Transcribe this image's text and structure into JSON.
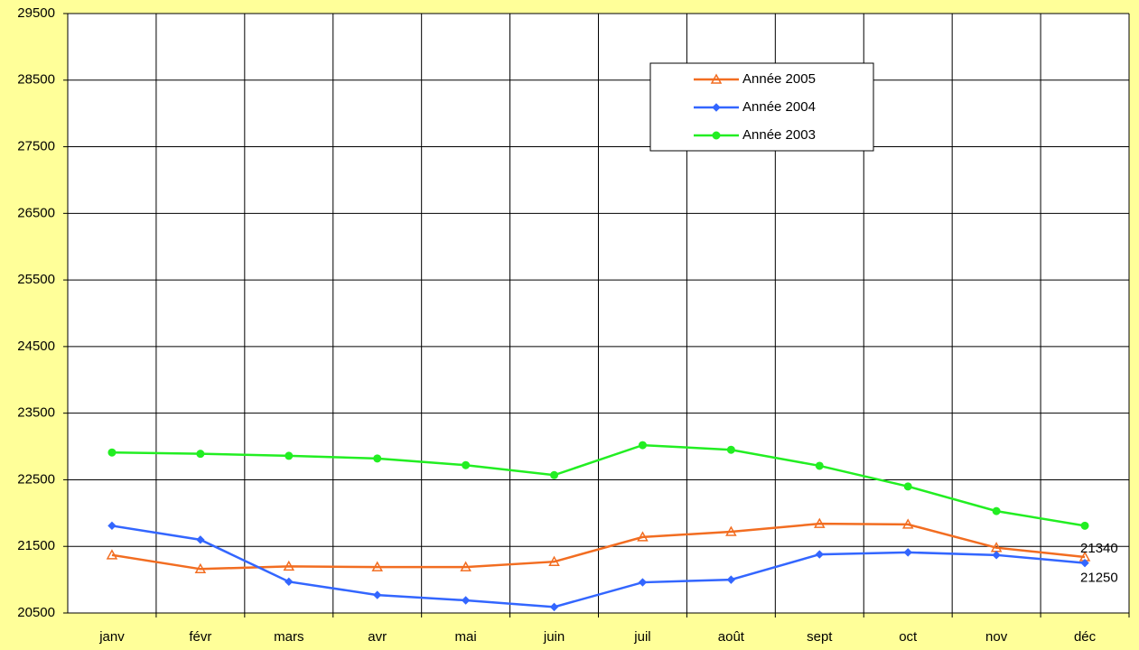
{
  "chart_data": {
    "type": "line",
    "categories": [
      "janv",
      "févr",
      "mars",
      "avr",
      "mai",
      "juin",
      "juil",
      "août",
      "sept",
      "oct",
      "nov",
      "déc"
    ],
    "series": [
      {
        "name": "Année 2005",
        "color": "#f26d21",
        "marker": "triangle",
        "values": [
          21370,
          21160,
          21200,
          21190,
          21190,
          21270,
          21640,
          21720,
          21840,
          21830,
          21480,
          21340
        ]
      },
      {
        "name": "Année 2004",
        "color": "#3366ff",
        "marker": "diamond",
        "values": [
          21810,
          21600,
          20970,
          20770,
          20690,
          20590,
          20960,
          21000,
          21380,
          21410,
          21370,
          21250
        ]
      },
      {
        "name": "Année 2003",
        "color": "#22ee22",
        "marker": "circle",
        "values": [
          22910,
          22890,
          22860,
          22820,
          22720,
          22570,
          23020,
          22950,
          22710,
          22400,
          22030,
          21810
        ]
      }
    ],
    "ylim": [
      20500,
      29500
    ],
    "yticks": [
      20500,
      21500,
      22500,
      23500,
      24500,
      25500,
      26500,
      27500,
      28500,
      29500
    ],
    "grid": true
  }
}
